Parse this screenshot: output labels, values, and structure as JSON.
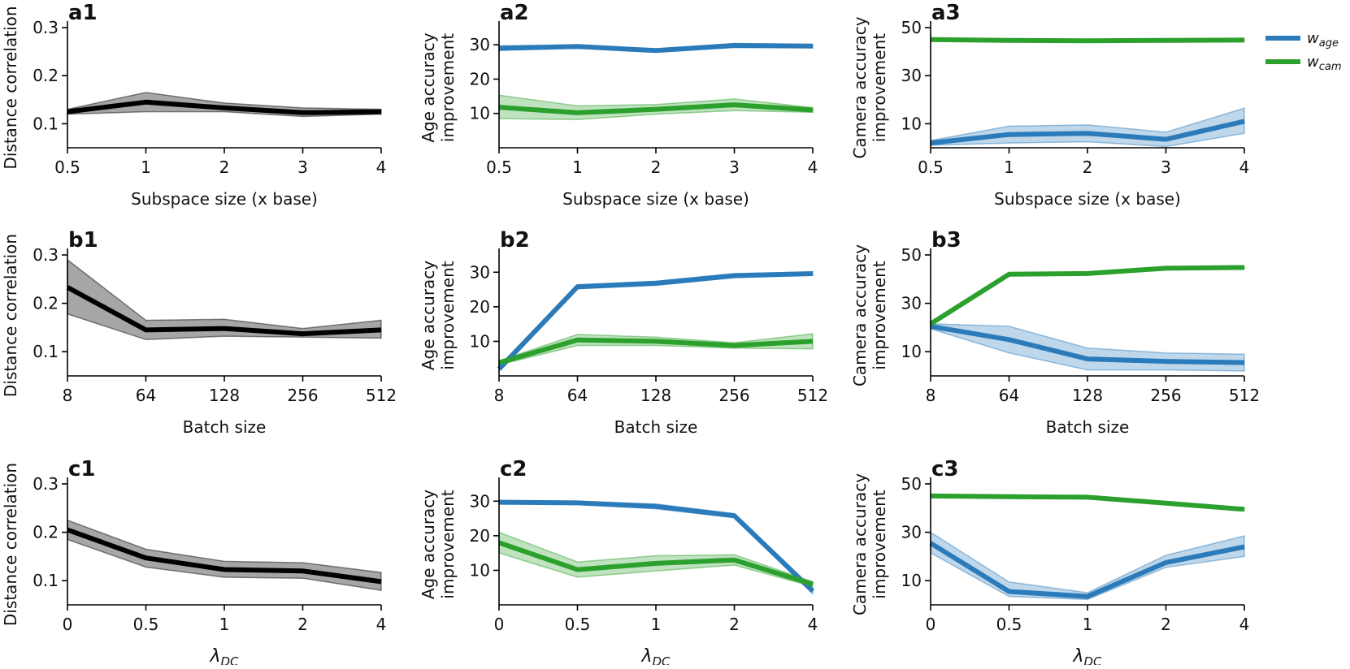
{
  "colors": {
    "age": "#2b7bba",
    "cam": "#2ca02c",
    "dc": "#000000"
  },
  "legend": {
    "items": [
      {
        "key": "age",
        "base": "w",
        "sub": "age"
      },
      {
        "key": "cam",
        "base": "w",
        "sub": "cam"
      }
    ]
  },
  "chart_data": [
    {
      "id": "a1",
      "panel": "a1",
      "type": "line",
      "categories": [
        "0.5",
        "1",
        "2",
        "3",
        "4"
      ],
      "xlabel": "Subspace size (x base)",
      "ylabel": [
        "Distance correlation"
      ],
      "ylim": [
        0.05,
        0.3
      ],
      "yticks": [
        "0.1",
        "0.2",
        "0.3"
      ],
      "series": [
        {
          "name": "distance correlation",
          "color_key": "dc",
          "values": [
            0.125,
            0.145,
            0.133,
            0.123,
            0.125
          ],
          "lower": [
            0.12,
            0.125,
            0.125,
            0.115,
            0.12
          ],
          "upper": [
            0.13,
            0.165,
            0.143,
            0.133,
            0.13
          ]
        }
      ]
    },
    {
      "id": "a2",
      "panel": "a2",
      "type": "line",
      "categories": [
        "0.5",
        "1",
        "2",
        "3",
        "4"
      ],
      "xlabel": "Subspace size (x base)",
      "ylabel": [
        "Age accuracy",
        "improvement"
      ],
      "ylim": [
        0,
        35
      ],
      "yticks": [
        "10",
        "20",
        "30"
      ],
      "series": [
        {
          "name": "w_age",
          "color_key": "age",
          "values": [
            29,
            29.5,
            28.3,
            29.8,
            29.6
          ],
          "lower": [
            28.3,
            29,
            27.8,
            29.2,
            29.1
          ],
          "upper": [
            29.7,
            30,
            28.8,
            30.4,
            30.1
          ]
        },
        {
          "name": "w_cam",
          "color_key": "cam",
          "values": [
            11.8,
            10.2,
            11.2,
            12.5,
            11
          ],
          "lower": [
            8.5,
            8.2,
            9.8,
            10.8,
            10.3
          ],
          "upper": [
            15.3,
            12.2,
            12.6,
            14.2,
            11.7
          ]
        }
      ]
    },
    {
      "id": "a3",
      "panel": "a3",
      "type": "line",
      "categories": [
        "0.5",
        "1",
        "2",
        "3",
        "4"
      ],
      "xlabel": "Subspace size (x base)",
      "ylabel": [
        "Camera accuracy",
        "improvement"
      ],
      "ylim": [
        0,
        50
      ],
      "yticks": [
        "10",
        "30",
        "50"
      ],
      "series": [
        {
          "name": "w_age",
          "color_key": "age",
          "values": [
            2,
            5.5,
            6,
            3.5,
            11
          ],
          "lower": [
            1,
            2,
            2.5,
            0.5,
            6
          ],
          "upper": [
            3,
            9,
            9.5,
            6.5,
            16.5
          ]
        },
        {
          "name": "w_cam",
          "color_key": "cam",
          "values": [
            45,
            44.7,
            44.5,
            44.7,
            44.8
          ],
          "lower": [
            44.5,
            44.2,
            44,
            44.2,
            44.3
          ],
          "upper": [
            45.5,
            45.2,
            45,
            45.2,
            45.3
          ]
        }
      ]
    },
    {
      "id": "b1",
      "panel": "b1",
      "type": "line",
      "categories": [
        "8",
        "64",
        "128",
        "256",
        "512"
      ],
      "xlabel": "Batch size",
      "ylabel": [
        "Distance correlation"
      ],
      "ylim": [
        0.05,
        0.3
      ],
      "yticks": [
        "0.1",
        "0.2",
        "0.3"
      ],
      "series": [
        {
          "name": "distance correlation",
          "color_key": "dc",
          "values": [
            0.233,
            0.145,
            0.148,
            0.137,
            0.145
          ],
          "lower": [
            0.178,
            0.125,
            0.132,
            0.13,
            0.128
          ],
          "upper": [
            0.29,
            0.165,
            0.167,
            0.148,
            0.165
          ]
        }
      ]
    },
    {
      "id": "b2",
      "panel": "b2",
      "type": "line",
      "categories": [
        "8",
        "64",
        "128",
        "256",
        "512"
      ],
      "xlabel": "Batch size",
      "ylabel": [
        "Age accuracy",
        "improvement"
      ],
      "ylim": [
        0,
        35
      ],
      "yticks": [
        "10",
        "20",
        "30"
      ],
      "series": [
        {
          "name": "w_age",
          "color_key": "age",
          "values": [
            2,
            25.8,
            26.8,
            29,
            29.6
          ],
          "lower": [
            1.5,
            25.2,
            26.2,
            28.4,
            29.1
          ],
          "upper": [
            2.5,
            26.4,
            27.4,
            29.6,
            30.1
          ]
        },
        {
          "name": "w_cam",
          "color_key": "cam",
          "values": [
            3.8,
            10.4,
            10,
            8.8,
            10
          ],
          "lower": [
            3.2,
            8.8,
            8.8,
            8,
            7.8
          ],
          "upper": [
            4.4,
            12,
            11.2,
            9.6,
            12.2
          ]
        }
      ]
    },
    {
      "id": "b3",
      "panel": "b3",
      "type": "line",
      "categories": [
        "8",
        "64",
        "128",
        "256",
        "512"
      ],
      "xlabel": "Batch size",
      "ylabel": [
        "Camera accuracy",
        "improvement"
      ],
      "ylim": [
        0,
        50
      ],
      "yticks": [
        "10",
        "30",
        "50"
      ],
      "series": [
        {
          "name": "w_age",
          "color_key": "age",
          "values": [
            20.5,
            15,
            7,
            6,
            5.5
          ],
          "lower": [
            19.5,
            9.5,
            2.5,
            2.5,
            2
          ],
          "upper": [
            21.5,
            20.5,
            11.5,
            9.5,
            9
          ]
        },
        {
          "name": "w_cam",
          "color_key": "cam",
          "values": [
            21.5,
            42,
            42.3,
            44.5,
            44.8
          ],
          "lower": [
            21,
            41.5,
            41.8,
            44,
            44.3
          ],
          "upper": [
            22,
            42.5,
            42.8,
            45,
            45.3
          ]
        }
      ]
    },
    {
      "id": "c1",
      "panel": "c1",
      "type": "line",
      "categories": [
        "0",
        "0.5",
        "1",
        "2",
        "4"
      ],
      "xlabel": "λDC",
      "ylabel": [
        "Distance correlation"
      ],
      "ylim": [
        0.05,
        0.3
      ],
      "yticks": [
        "0.1",
        "0.2",
        "0.3"
      ],
      "series": [
        {
          "name": "distance correlation",
          "color_key": "dc",
          "values": [
            0.205,
            0.147,
            0.123,
            0.12,
            0.098
          ],
          "lower": [
            0.185,
            0.128,
            0.107,
            0.105,
            0.08
          ],
          "upper": [
            0.225,
            0.165,
            0.14,
            0.137,
            0.117
          ]
        }
      ]
    },
    {
      "id": "c2",
      "panel": "c2",
      "type": "line",
      "categories": [
        "0",
        "0.5",
        "1",
        "2",
        "4"
      ],
      "xlabel": "λDC",
      "ylabel": [
        "Age accuracy",
        "improvement"
      ],
      "ylim": [
        0,
        35
      ],
      "yticks": [
        "10",
        "20",
        "30"
      ],
      "series": [
        {
          "name": "w_age",
          "color_key": "age",
          "values": [
            29.7,
            29.5,
            28.5,
            25.8,
            4
          ],
          "lower": [
            29.2,
            29,
            27.8,
            25.2,
            3.2
          ],
          "upper": [
            30.2,
            30,
            29.2,
            26.4,
            4.8
          ]
        },
        {
          "name": "w_cam",
          "color_key": "cam",
          "values": [
            18,
            10.2,
            12,
            13,
            6
          ],
          "lower": [
            15,
            8,
            9.8,
            11.5,
            5.3
          ],
          "upper": [
            21,
            12.4,
            14.2,
            14.5,
            6.7
          ]
        }
      ]
    },
    {
      "id": "c3",
      "panel": "c3",
      "type": "line",
      "categories": [
        "0",
        "0.5",
        "1",
        "2",
        "4"
      ],
      "xlabel": "λDC",
      "ylabel": [
        "Camera accuracy",
        "improvement"
      ],
      "ylim": [
        0,
        50
      ],
      "yticks": [
        "10",
        "30",
        "50"
      ],
      "series": [
        {
          "name": "w_age",
          "color_key": "age",
          "values": [
            25.5,
            5.5,
            3.5,
            17.5,
            24
          ],
          "lower": [
            21.5,
            3.5,
            2.2,
            15.5,
            20
          ],
          "upper": [
            30,
            9.5,
            5,
            20.5,
            28.5
          ]
        },
        {
          "name": "w_cam",
          "color_key": "cam",
          "values": [
            45,
            44.7,
            44.5,
            42,
            39.5
          ],
          "lower": [
            44.5,
            44.2,
            44,
            41.5,
            39
          ],
          "upper": [
            45.5,
            45.2,
            45,
            42.5,
            40
          ]
        }
      ]
    }
  ]
}
